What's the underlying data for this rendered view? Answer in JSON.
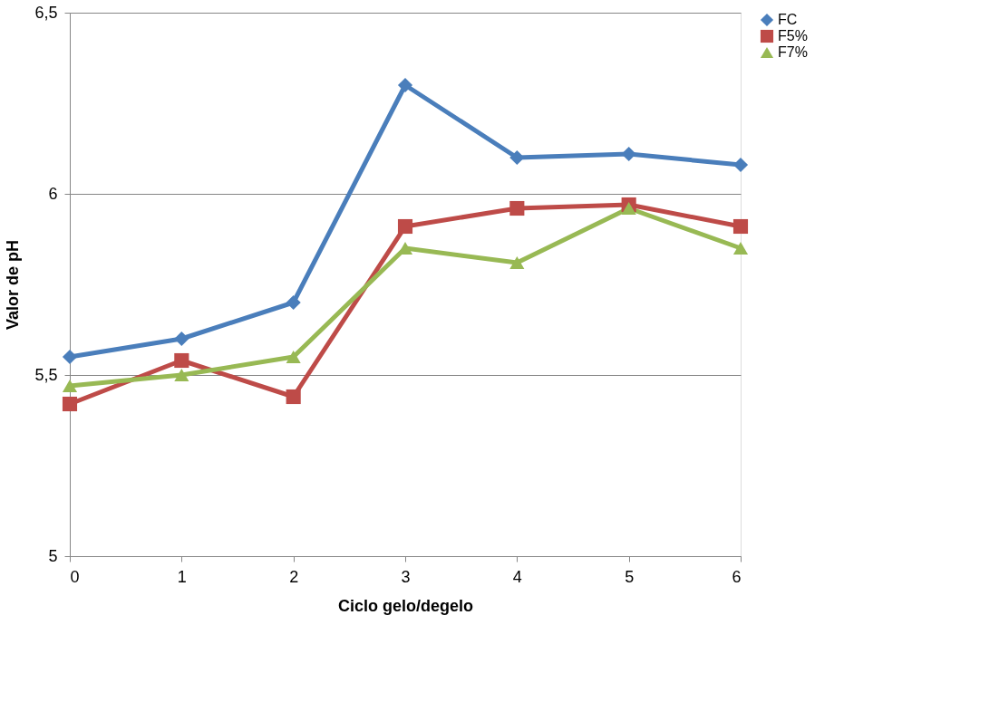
{
  "chart_data": {
    "type": "line",
    "xlabel": "Ciclo gelo/degelo",
    "ylabel": "Valor de pH",
    "x": [
      0,
      1,
      2,
      3,
      4,
      5,
      6
    ],
    "xlim": [
      0,
      6
    ],
    "xticks": [
      0,
      1,
      2,
      3,
      4,
      5,
      6
    ],
    "ylim": [
      5,
      6.5
    ],
    "yticks": [
      {
        "value": 5,
        "label": "5"
      },
      {
        "value": 5.5,
        "label": "5,5"
      },
      {
        "value": 6,
        "label": "6"
      },
      {
        "value": 6.5,
        "label": "6,5"
      }
    ],
    "grid": "y",
    "legend": "right",
    "line_style": "solid",
    "series": [
      {
        "name": "FC",
        "color": "#4a7ebb",
        "marker": "diamond",
        "values": [
          5.55,
          5.6,
          5.7,
          6.3,
          6.1,
          6.11,
          6.08
        ]
      },
      {
        "name": "F5%",
        "color": "#be4b48",
        "marker": "square",
        "values": [
          5.42,
          5.54,
          5.44,
          5.91,
          5.96,
          5.97,
          5.91
        ]
      },
      {
        "name": "F7%",
        "color": "#98b954",
        "marker": "triangle",
        "values": [
          5.47,
          5.5,
          5.55,
          5.85,
          5.81,
          5.96,
          5.85
        ]
      }
    ]
  }
}
